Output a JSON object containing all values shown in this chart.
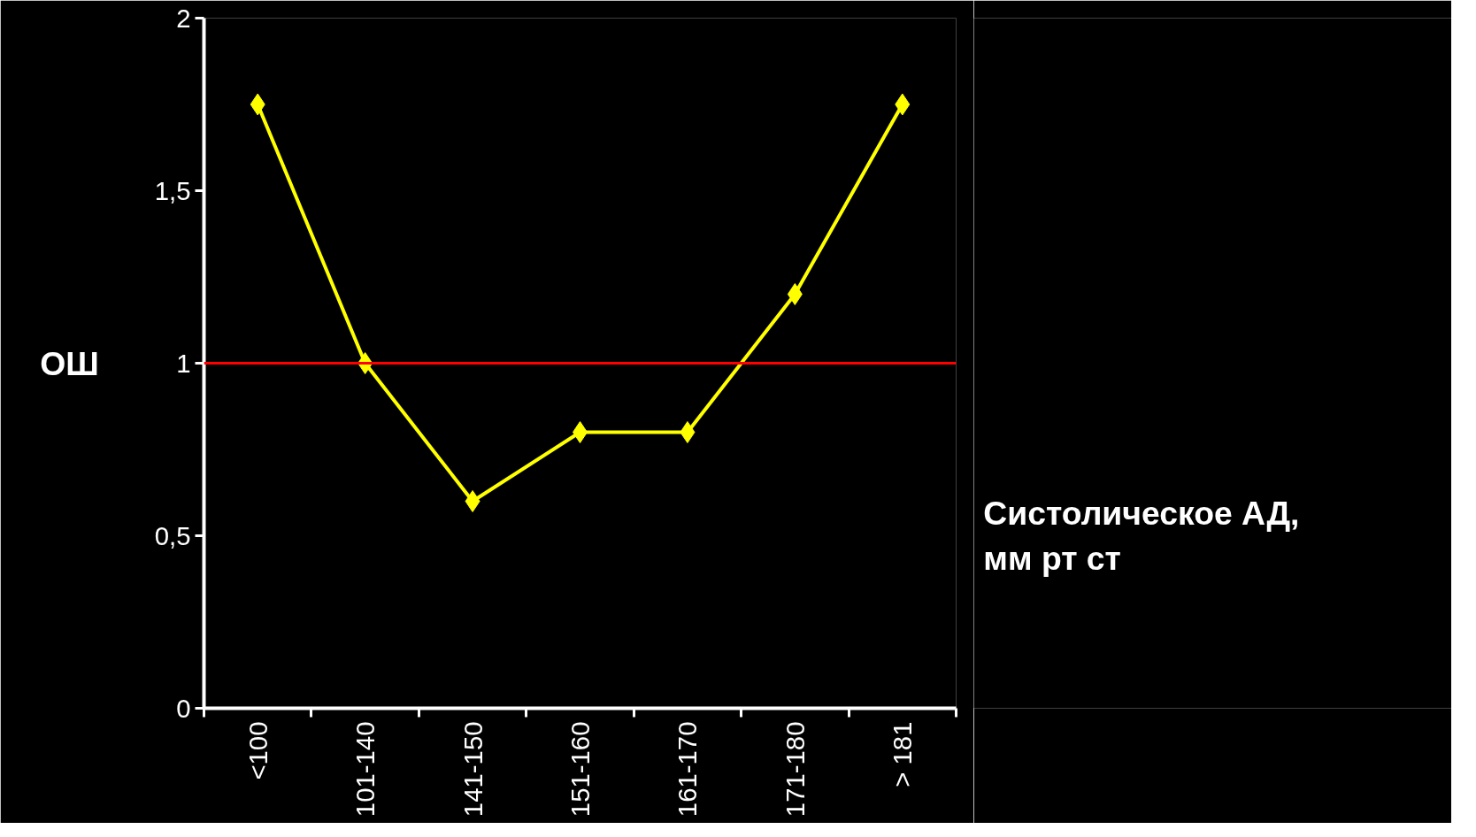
{
  "chart_data": {
    "type": "line",
    "xlabel": "Систолическое АД,\nмм рт ст",
    "ylabel": "ОШ",
    "categories": [
      "<100",
      "101-140",
      "141-150",
      "151-160",
      "161-170",
      "171-180",
      "> 181"
    ],
    "series": [
      {
        "color": "#ffff00",
        "values": [
          1.75,
          1.0,
          0.6,
          0.8,
          0.8,
          1.2,
          1.75
        ]
      }
    ],
    "ylim": [
      0,
      2
    ],
    "yticks": [
      0,
      {
        "value": 0.5,
        "label": "0,5"
      },
      1,
      {
        "value": 1.5,
        "label": "1,5"
      },
      2
    ],
    "ref_lines": [
      {
        "axis": "y",
        "value": 1,
        "color": "#ff0000"
      }
    ],
    "marker": "diamond",
    "line_style": "solid",
    "grid": false
  }
}
